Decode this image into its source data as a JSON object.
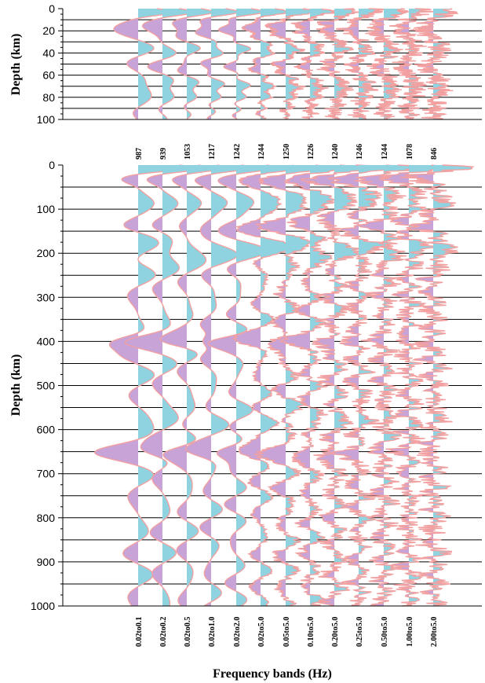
{
  "chart_data": [
    {
      "type": "line",
      "panel": "top",
      "ylabel": "Depth (km)",
      "ylim": [
        0,
        100
      ],
      "y_ticks": [
        0,
        20,
        40,
        60,
        80,
        100
      ],
      "interfaces_km": [
        10,
        20,
        30,
        40,
        50,
        60,
        70,
        80,
        90
      ],
      "bands": [
        "0.02to0.1",
        "0.02to0.2",
        "0.02to0.5",
        "0.02to1.0",
        "0.02to2.0",
        "0.02to5.0",
        "0.05to5.0",
        "0.10to5.0",
        "0.20to5.0",
        "0.25to5.0",
        "0.50to5.0",
        "1.00to5.0",
        "2.00to5.0"
      ],
      "positive_color": "#8fd3e0",
      "negative_color": "#c7a3d8",
      "line_color": "#f2a0a0"
    },
    {
      "type": "line",
      "panel": "bottom",
      "ylabel": "Depth (km)",
      "xlabel": "Frequency bands (Hz)",
      "ylim": [
        0,
        1000
      ],
      "y_ticks": [
        0,
        100,
        200,
        300,
        400,
        500,
        600,
        700,
        800,
        900,
        1000
      ],
      "interfaces_km": [
        50,
        100,
        150,
        200,
        250,
        300,
        350,
        400,
        450,
        500,
        550,
        600,
        650,
        700,
        750,
        800,
        850,
        900,
        950
      ],
      "bands": [
        "0.02to0.1",
        "0.02to0.2",
        "0.02to0.5",
        "0.02to1.0",
        "0.02to2.0",
        "0.02to5.0",
        "0.05to5.0",
        "0.10to5.0",
        "0.20to5.0",
        "0.25to5.0",
        "0.50to5.0",
        "1.00to5.0",
        "2.00to5.0"
      ],
      "trace_counts": [
        987,
        939,
        1053,
        1217,
        1242,
        1244,
        1250,
        1226,
        1240,
        1246,
        1244,
        1078,
        846
      ],
      "major_arrivals_km": [
        35,
        150,
        190,
        400,
        650
      ],
      "positive_color": "#8fd3e0",
      "negative_color": "#c7a3d8",
      "line_color": "#f2a0a0"
    }
  ]
}
